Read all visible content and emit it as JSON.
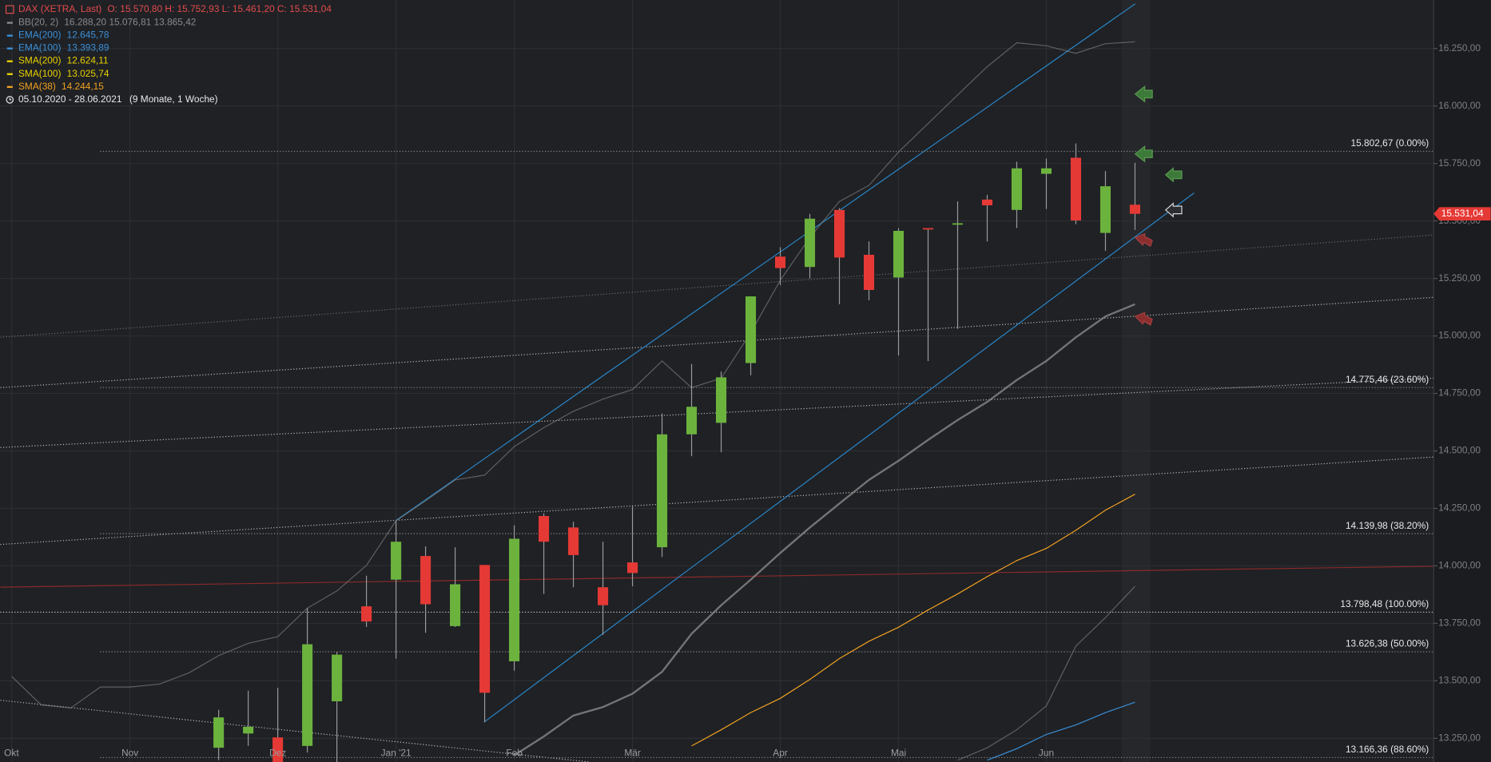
{
  "chart_data": {
    "type": "candlestick",
    "title": "DAX (XETRA, Last)",
    "ohlc_label": "O: 15.570,80  H: 15.752,93  L: 15.461,20  C: 15.531,04",
    "title_color": "#e24b4b",
    "period": "05.10.2020 - 28.06.2021",
    "period_length": "(9 Monate, 1 Woche)",
    "up_color": "#6cb33e",
    "down_color": "#e53935",
    "grid": true,
    "categories": [
      "Okt",
      null,
      null,
      null,
      "Nov",
      null,
      null,
      null,
      null,
      "Dez",
      null,
      null,
      null,
      "Jan '21",
      null,
      null,
      null,
      "Feb",
      null,
      null,
      null,
      "Mär",
      null,
      null,
      null,
      null,
      "Apr",
      null,
      null,
      null,
      "Mai",
      null,
      null,
      null,
      null,
      "Jun",
      null,
      null,
      null
    ],
    "open": [
      null,
      null,
      null,
      null,
      null,
      null,
      null,
      13209,
      13271,
      13254,
      13217,
      13411,
      13824,
      13940,
      14043,
      13738,
      14004,
      13585,
      14217,
      14167,
      13907,
      14015,
      14081,
      14572,
      14622,
      14882,
      15345,
      15300,
      15548,
      15353,
      15254,
      15469,
      15486,
      15593,
      15548,
      15705,
      15775,
      15448,
      15570.8
    ],
    "high": [
      null,
      null,
      null,
      null,
      null,
      null,
      null,
      13374,
      13457,
      13469,
      13816,
      13626,
      13957,
      14196,
      14085,
      14081,
      14004,
      14176,
      14229,
      14192,
      14105,
      14258,
      14663,
      14878,
      14845,
      15172,
      15386,
      15531,
      15556,
      15411,
      15469,
      15469,
      15585,
      15614,
      15758,
      15771,
      15837,
      15717,
      15752.93
    ],
    "low": [
      null,
      null,
      null,
      null,
      null,
      null,
      null,
      13155,
      13217,
      13120,
      13188,
      13130,
      13734,
      13597,
      13709,
      13734,
      13320,
      13544,
      13878,
      13907,
      13700,
      13911,
      14039,
      14477,
      14494,
      14829,
      15221,
      15250,
      15138,
      15155,
      14915,
      14891,
      15031,
      15411,
      15469,
      15552,
      15486,
      15370,
      15461.2
    ],
    "close": [
      null,
      null,
      null,
      null,
      null,
      null,
      null,
      13341,
      13300,
      13147,
      13659,
      13614,
      13758,
      14105,
      13833,
      13920,
      13448,
      14118,
      14105,
      14047,
      13829,
      13969,
      14572,
      14692,
      14820,
      15172,
      15295,
      15510,
      15341,
      15200,
      15457,
      15465,
      15490,
      15568,
      15729,
      15729,
      15502,
      15651,
      15531.04
    ],
    "indicators": [
      {
        "name": "BB(20, 2)",
        "label": "16.288,20  15.076,81  13.865,42",
        "color": "#8a8a8a",
        "lines": [
          [
            13519,
            13395,
            13382,
            13473,
            13473,
            13486,
            13535,
            13610,
            13663,
            13692,
            13816,
            13891,
            14002,
            14196,
            14283,
            14374,
            14395,
            14519,
            14601,
            14672,
            14725,
            14767,
            14891,
            14775,
            14816,
            15014,
            15242,
            15428,
            15585,
            15655,
            15800,
            15924,
            16048,
            16171,
            16275,
            16262,
            16229,
            16271,
            16279
          ],
          [
            null,
            null,
            null,
            null,
            null,
            null,
            null,
            null,
            null,
            null,
            null,
            null,
            null,
            null,
            null,
            null,
            null,
            13176,
            13258,
            13349,
            13386,
            13444,
            13539,
            13705,
            13829,
            13940,
            14056,
            14167,
            14271,
            14374,
            14457,
            14548,
            14634,
            14713,
            14808,
            14891,
            14994,
            15085,
            15138
          ],
          [
            null,
            null,
            null,
            null,
            null,
            null,
            null,
            null,
            null,
            null,
            null,
            null,
            null,
            null,
            null,
            null,
            null,
            null,
            null,
            null,
            null,
            null,
            null,
            null,
            null,
            null,
            null,
            null,
            null,
            null,
            null,
            null,
            13155,
            13209,
            13287,
            13391,
            13651,
            13775,
            13911
          ]
        ]
      },
      {
        "name": "EMA(200)",
        "label": "12.645,78",
        "color": "#3a8fd8"
      },
      {
        "name": "EMA(100)",
        "label": "13.393,89",
        "color": "#3a8fd8",
        "lines": [
          [
            null,
            null,
            null,
            null,
            null,
            null,
            null,
            null,
            null,
            null,
            null,
            null,
            null,
            null,
            null,
            null,
            null,
            null,
            null,
            null,
            null,
            null,
            null,
            null,
            null,
            null,
            null,
            null,
            null,
            null,
            null,
            null,
            null,
            13155,
            13205,
            13267,
            13308,
            13362,
            13407
          ]
        ]
      },
      {
        "name": "SMA(200)",
        "label": "12.624,11",
        "color": "#e8d000"
      },
      {
        "name": "SMA(100)",
        "label": "13.025,74",
        "color": "#e8d000"
      },
      {
        "name": "SMA(38)",
        "label": "14.244,15",
        "color": "#f0a020",
        "lines": [
          [
            null,
            null,
            null,
            null,
            null,
            null,
            null,
            null,
            null,
            null,
            null,
            null,
            null,
            null,
            null,
            null,
            null,
            null,
            null,
            null,
            null,
            null,
            null,
            13217,
            13287,
            13362,
            13424,
            13506,
            13597,
            13672,
            13733,
            13808,
            13878,
            13953,
            14023,
            14076,
            14155,
            14242,
            14312
          ]
        ]
      }
    ],
    "fib_levels": [
      {
        "value": 15802.67,
        "label": "15.802,67 (0.00%)"
      },
      {
        "value": 14775.46,
        "label": "14.775,46 (23.60%)"
      },
      {
        "value": 14139.98,
        "label": "14.139,98 (38.20%)"
      },
      {
        "value": 13798.48,
        "label": "13.798,48 (100.00%)"
      },
      {
        "value": 13626.38,
        "label": "13.626,38 (50.00%)"
      },
      {
        "value": 13166.36,
        "label": "13.166,36 (88.60%)"
      }
    ],
    "last_price": {
      "value": 15531.04,
      "label": "15.531,04"
    },
    "ylim": [
      13147,
      16461
    ],
    "yticks": [
      {
        "value": 13250,
        "label": "13.250,00"
      },
      {
        "value": 13500,
        "label": "13.500,00"
      },
      {
        "value": 13750,
        "label": "13.750,00"
      },
      {
        "value": 14000,
        "label": "14.000,00"
      },
      {
        "value": 14250,
        "label": "14.250,00"
      },
      {
        "value": 14500,
        "label": "14.500,00"
      },
      {
        "value": 14750,
        "label": "14.750,00"
      },
      {
        "value": 15000,
        "label": "15.000,00"
      },
      {
        "value": 15250,
        "label": "15.250,00"
      },
      {
        "value": 15500,
        "label": "15.500,00"
      },
      {
        "value": 15750,
        "label": "15.750,00"
      },
      {
        "value": 16000,
        "label": "16.000,00"
      },
      {
        "value": 16250,
        "label": "16.250,00"
      }
    ]
  }
}
